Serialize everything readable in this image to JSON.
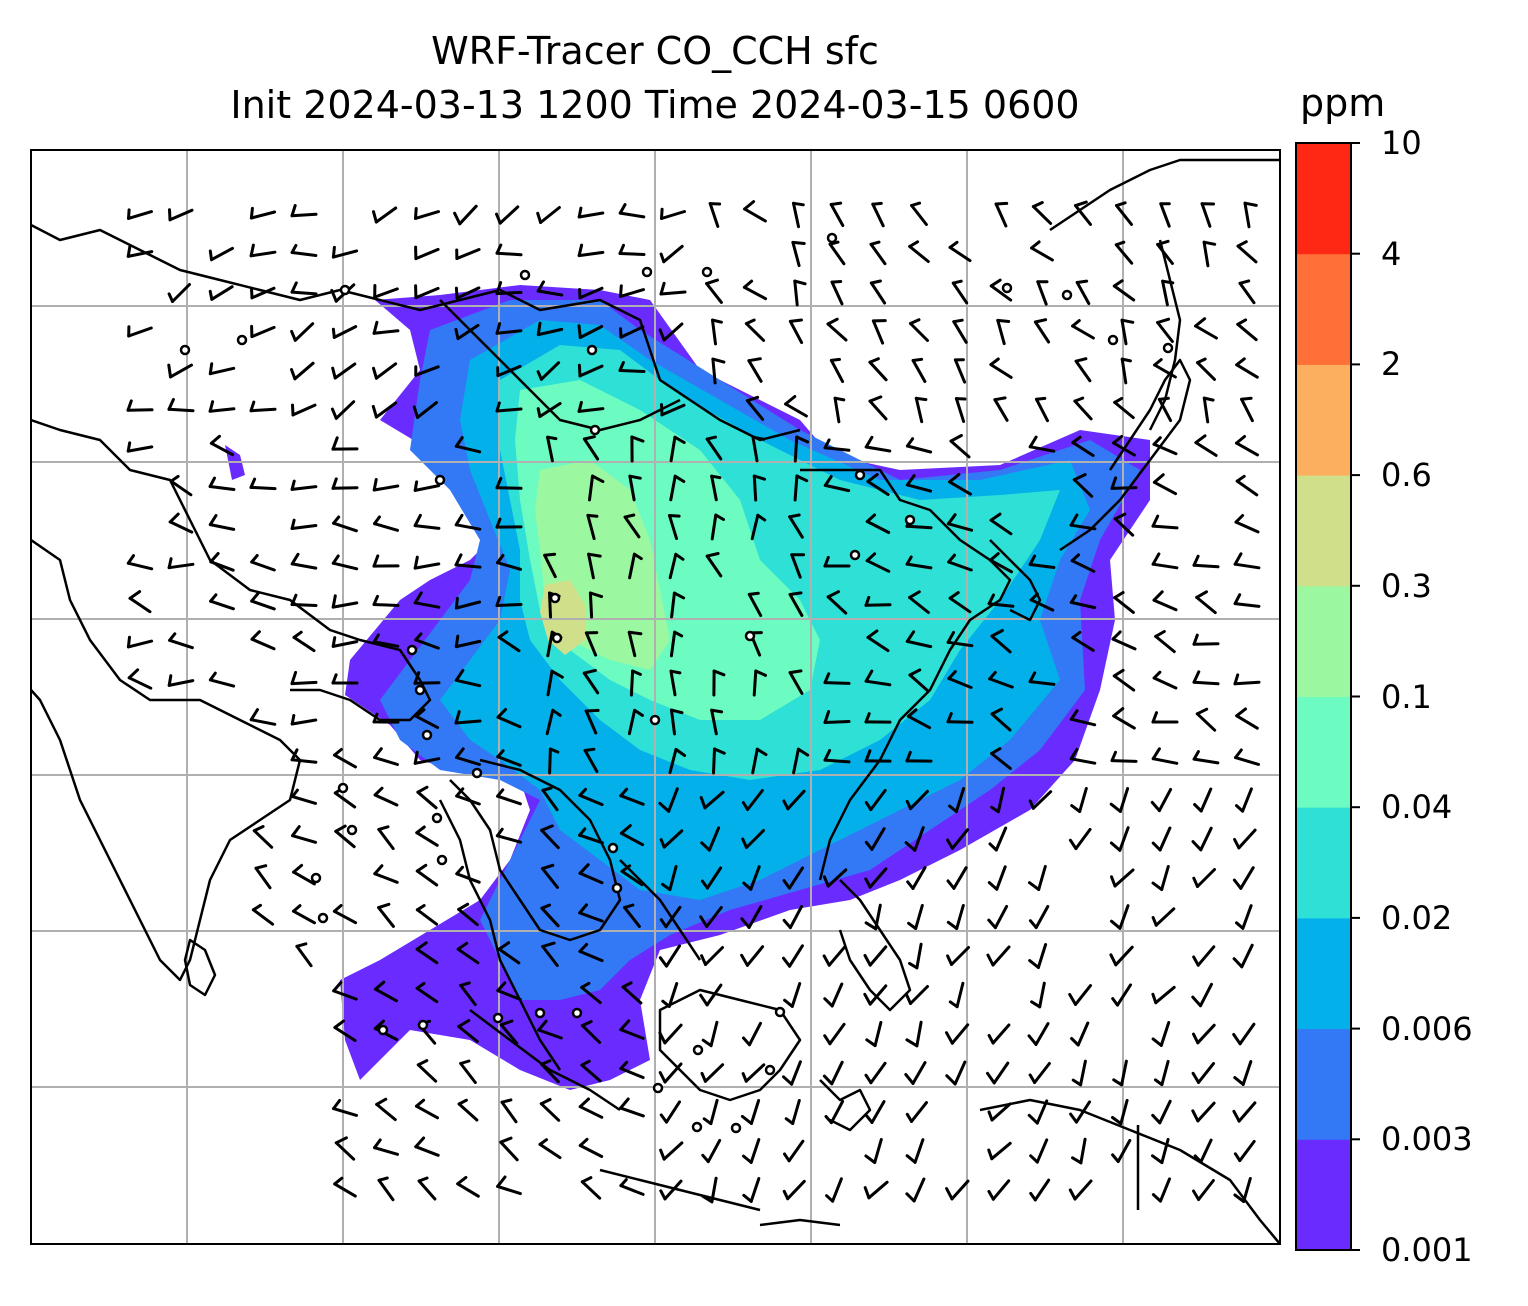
{
  "title": {
    "line1": "WRF-Tracer CO_CCH sfc",
    "line2": "Init 2024-03-13 1200 Time 2024-03-15 0600"
  },
  "colorbar": {
    "unit": "ppm",
    "levels": [
      "0.001",
      "0.003",
      "0.006",
      "0.02",
      "0.04",
      "0.1",
      "0.3",
      "0.6",
      "2",
      "4",
      "10"
    ],
    "colors": [
      "#6a2bff",
      "#3378f5",
      "#04b0ea",
      "#2ee0d6",
      "#6cfbc0",
      "#9bf8a0",
      "#d0e08a",
      "#fdaf60",
      "#ff7038",
      "#ff2814"
    ]
  },
  "map": {
    "gridlines": true,
    "layers": [
      "coastlines",
      "country-borders",
      "wind-barbs",
      "CO_CCH-shading"
    ]
  }
}
